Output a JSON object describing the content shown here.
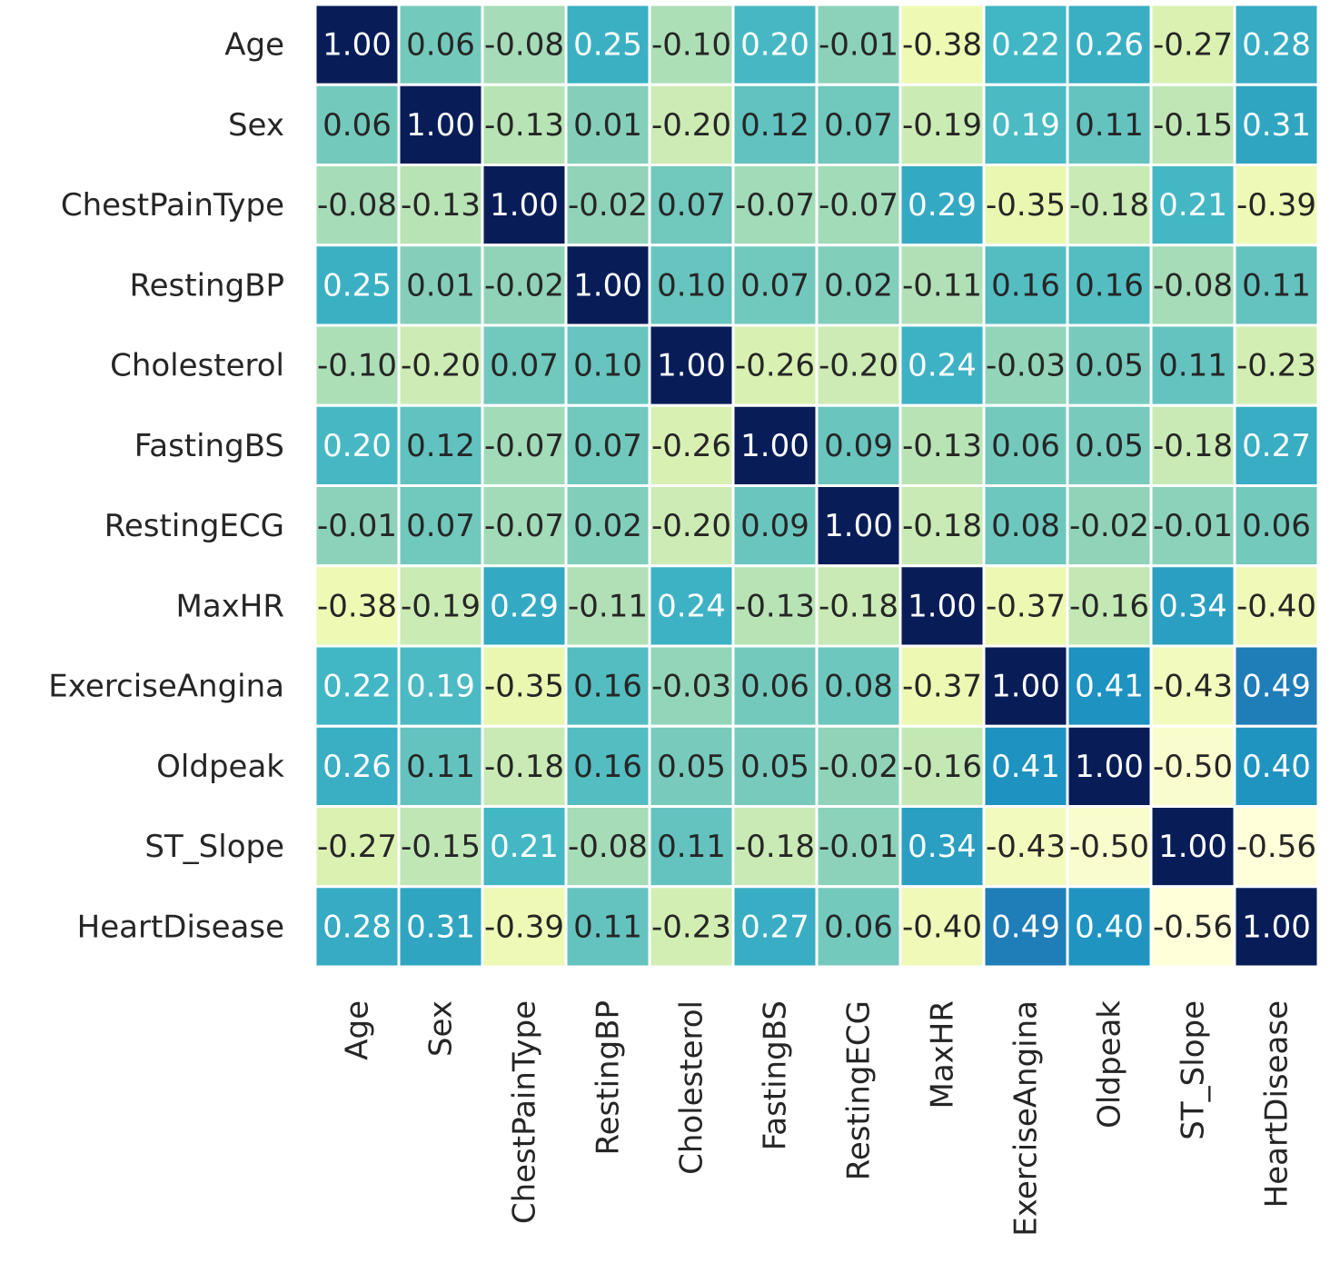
{
  "chart_data": {
    "type": "heatmap",
    "colormap": "YlGnBu",
    "x": [
      "Age",
      "Sex",
      "ChestPainType",
      "RestingBP",
      "Cholesterol",
      "FastingBS",
      "RestingECG",
      "MaxHR",
      "ExerciseAngina",
      "Oldpeak",
      "ST_Slope",
      "HeartDisease"
    ],
    "y": [
      "Age",
      "Sex",
      "ChestPainType",
      "RestingBP",
      "Cholesterol",
      "FastingBS",
      "RestingECG",
      "MaxHR",
      "ExerciseAngina",
      "Oldpeak",
      "ST_Slope",
      "HeartDisease"
    ],
    "values": [
      [
        1,
        0.06,
        -0.08,
        0.25,
        -0.1,
        0.2,
        -0.01,
        -0.38,
        0.22,
        0.26,
        -0.27,
        0.28
      ],
      [
        0.06,
        1,
        -0.13,
        0.01,
        -0.2,
        0.12,
        0.07,
        -0.19,
        0.19,
        0.11,
        -0.15,
        0.31
      ],
      [
        -0.08,
        -0.13,
        1,
        -0.02,
        0.07,
        -0.07,
        -0.07,
        0.29,
        -0.35,
        -0.18,
        0.21,
        -0.39
      ],
      [
        0.25,
        0.01,
        -0.02,
        1,
        0.1,
        0.07,
        0.02,
        -0.11,
        0.16,
        0.16,
        -0.08,
        0.11
      ],
      [
        -0.1,
        -0.2,
        0.07,
        0.1,
        1,
        -0.26,
        -0.2,
        0.24,
        -0.03,
        0.05,
        0.11,
        -0.23
      ],
      [
        0.2,
        0.12,
        -0.07,
        0.07,
        -0.26,
        1,
        0.09,
        -0.13,
        0.06,
        0.05,
        -0.18,
        0.27
      ],
      [
        -0.01,
        0.07,
        -0.07,
        0.02,
        -0.2,
        0.09,
        1,
        -0.18,
        0.08,
        -0.02,
        -0.01,
        0.06
      ],
      [
        -0.38,
        -0.19,
        0.29,
        -0.11,
        0.24,
        -0.13,
        -0.18,
        1,
        -0.37,
        -0.16,
        0.34,
        -0.4
      ],
      [
        0.22,
        0.19,
        -0.35,
        0.16,
        -0.03,
        0.06,
        0.08,
        -0.37,
        1,
        0.41,
        -0.43,
        0.49
      ],
      [
        0.26,
        0.11,
        -0.18,
        0.16,
        0.05,
        0.05,
        -0.02,
        -0.16,
        0.41,
        1,
        -0.5,
        0.4
      ],
      [
        -0.27,
        -0.15,
        0.21,
        -0.08,
        0.11,
        -0.18,
        -0.01,
        0.34,
        -0.43,
        -0.5,
        1,
        -0.56
      ],
      [
        0.28,
        0.31,
        -0.39,
        0.11,
        -0.23,
        0.27,
        0.06,
        -0.4,
        0.49,
        0.4,
        -0.56,
        1
      ]
    ],
    "value_labels": [
      [
        "1.00",
        "0.06",
        "-0.08",
        "0.25",
        "-0.10",
        "0.20",
        "-0.01",
        "-0.38",
        "0.22",
        "0.26",
        "-0.27",
        "0.28"
      ],
      [
        "0.06",
        "1.00",
        "-0.13",
        "0.01",
        "-0.20",
        "0.12",
        "0.07",
        "-0.19",
        "0.19",
        "0.11",
        "-0.15",
        "0.31"
      ],
      [
        "-0.08",
        "-0.13",
        "1.00",
        "-0.02",
        "0.07",
        "-0.07",
        "-0.07",
        "0.29",
        "-0.35",
        "-0.18",
        "0.21",
        "-0.39"
      ],
      [
        "0.25",
        "0.01",
        "-0.02",
        "1.00",
        "0.10",
        "0.07",
        "0.02",
        "-0.11",
        "0.16",
        "0.16",
        "-0.08",
        "0.11"
      ],
      [
        "-0.10",
        "-0.20",
        "0.07",
        "0.10",
        "1.00",
        "-0.26",
        "-0.20",
        "0.24",
        "-0.03",
        "0.05",
        "0.11",
        "-0.23"
      ],
      [
        "0.20",
        "0.12",
        "-0.07",
        "0.07",
        "-0.26",
        "1.00",
        "0.09",
        "-0.13",
        "0.06",
        "0.05",
        "-0.18",
        "0.27"
      ],
      [
        "-0.01",
        "0.07",
        "-0.07",
        "0.02",
        "-0.20",
        "0.09",
        "1.00",
        "-0.18",
        "0.08",
        "-0.02",
        "-0.01",
        "0.06"
      ],
      [
        "-0.38",
        "-0.19",
        "0.29",
        "-0.11",
        "0.24",
        "-0.13",
        "-0.18",
        "1.00",
        "-0.37",
        "-0.16",
        "0.34",
        "-0.40"
      ],
      [
        "0.22",
        "0.19",
        "-0.35",
        "0.16",
        "-0.03",
        "0.06",
        "0.08",
        "-0.37",
        "1.00",
        "0.41",
        "-0.43",
        "0.49"
      ],
      [
        "0.26",
        "0.11",
        "-0.18",
        "0.16",
        "0.05",
        "0.05",
        "-0.02",
        "-0.16",
        "0.41",
        "1.00",
        "-0.50",
        "0.40"
      ],
      [
        "-0.27",
        "-0.15",
        "0.21",
        "-0.08",
        "0.11",
        "-0.18",
        "-0.01",
        "0.34",
        "-0.43",
        "-0.50",
        "1.00",
        "-0.56"
      ],
      [
        "0.28",
        "0.31",
        "-0.39",
        "0.11",
        "-0.23",
        "0.27",
        "0.06",
        "-0.40",
        "0.49",
        "0.40",
        "-0.56",
        "1.00"
      ]
    ]
  }
}
